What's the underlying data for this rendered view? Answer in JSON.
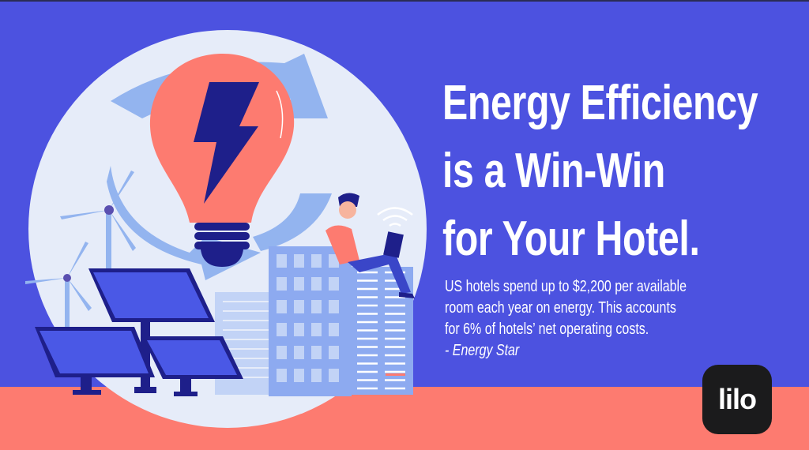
{
  "headline": {
    "lines": [
      "Energy Efficiency",
      "is a Win-Win",
      "for Your Hotel."
    ]
  },
  "body": {
    "lines": [
      "US hotels spend up to $2,200 per available",
      "room each year on energy. This accounts",
      "for 6% of hotels’ net operating costs."
    ],
    "source": "- Energy Star"
  },
  "logo": {
    "text": "lilo"
  },
  "colors": {
    "background": "#4c52e0",
    "coral": "#fd7b70",
    "circle": "#e6ecf9",
    "navy": "#1e1f8a",
    "logo_bg": "#1b1b1c"
  },
  "illustration": {
    "icons": [
      "light-bulb-icon",
      "lightning-bolt-icon",
      "recycle-arrows-icon",
      "wind-turbine-icon",
      "solar-panel-icon",
      "building-icon",
      "person-with-laptop-icon",
      "wifi-icon"
    ]
  }
}
